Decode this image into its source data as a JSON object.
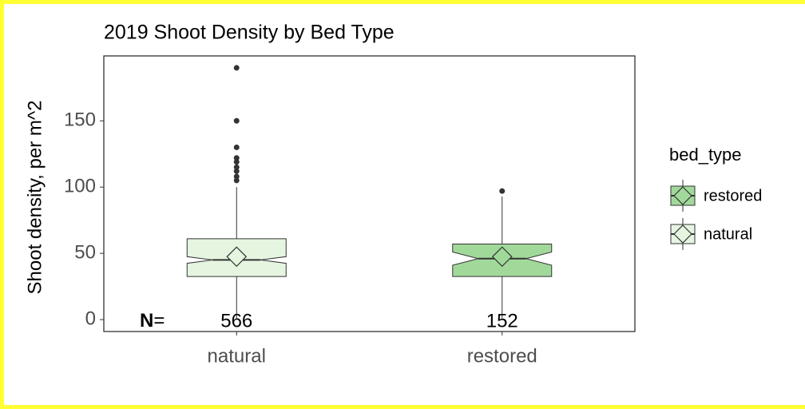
{
  "chart_data": {
    "type": "box",
    "title": "2019 Shoot Density by Bed Type",
    "y_label": "Shoot density, per m^2",
    "categories": [
      "natural",
      "restored"
    ],
    "ylim": [
      -9,
      199
    ],
    "yticks": [
      0,
      50,
      100,
      150
    ],
    "legend_title": "bed_type",
    "legend_reverse": true,
    "n_prefix": "N",
    "n_suffix": "=",
    "boxes": [
      {
        "name": "natural",
        "color": "#e5f5e0",
        "min": 0,
        "q1": 32.5,
        "median": 45,
        "q3": 61,
        "max": 100,
        "mean": 47.5,
        "notch_low": 42.5,
        "notch_high": 47.5,
        "outliers": [
          190,
          150,
          130,
          122,
          119,
          115,
          112,
          108,
          105
        ],
        "n": 566
      },
      {
        "name": "restored",
        "color": "#a1d99b",
        "min": 1,
        "q1": 32.5,
        "median": 46,
        "q3": 57,
        "max": 93,
        "mean": 47.5,
        "notch_low": 41,
        "notch_high": 51,
        "outliers": [
          97
        ],
        "n": 152
      }
    ]
  }
}
